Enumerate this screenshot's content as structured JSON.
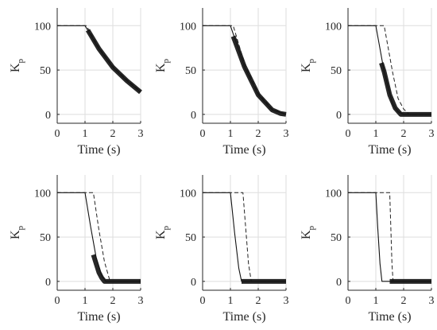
{
  "chart_data": [
    {
      "type": "line",
      "xlabel": "Time (s)",
      "ylabel": "K",
      "ylabel_sub": "p",
      "xlim": [
        0,
        3
      ],
      "ylim": [
        -10,
        120
      ],
      "xticks": [
        0,
        1,
        2,
        3
      ],
      "yticks": [
        0,
        50,
        100
      ],
      "grid": true,
      "series": [
        {
          "style": "solid",
          "x": [
            0,
            1.0,
            1.5,
            2.0,
            2.5,
            3.0
          ],
          "y": [
            100,
            100,
            74,
            53,
            38,
            25
          ]
        },
        {
          "style": "dashed",
          "x": [
            0,
            1.05,
            1.5,
            2.0,
            2.5,
            3.0
          ],
          "y": [
            100,
            100,
            75,
            54,
            39,
            26
          ]
        },
        {
          "style": "thick",
          "x": [
            1.1,
            1.5,
            2.0,
            2.5,
            3.0
          ],
          "y": [
            95,
            74,
            53,
            38,
            25
          ]
        }
      ]
    },
    {
      "type": "line",
      "xlabel": "Time (s)",
      "ylabel": "K",
      "ylabel_sub": "p",
      "xlim": [
        0,
        3
      ],
      "ylim": [
        -10,
        120
      ],
      "xticks": [
        0,
        1,
        2,
        3
      ],
      "yticks": [
        0,
        50,
        100
      ],
      "grid": true,
      "series": [
        {
          "style": "solid",
          "x": [
            0,
            1.0,
            1.5,
            2.0,
            2.5,
            3.0
          ],
          "y": [
            100,
            100,
            54,
            22,
            5,
            0
          ]
        },
        {
          "style": "dashed",
          "x": [
            0,
            1.1,
            1.5,
            2.0,
            2.5,
            3.0
          ],
          "y": [
            100,
            100,
            58,
            24,
            6,
            0
          ]
        },
        {
          "style": "thick",
          "x": [
            1.1,
            1.5,
            2.0,
            2.5,
            2.8,
            3.0
          ],
          "y": [
            88,
            54,
            22,
            5,
            1,
            0
          ]
        }
      ]
    },
    {
      "type": "line",
      "xlabel": "Time (s)",
      "ylabel": "K",
      "ylabel_sub": "p",
      "xlim": [
        0,
        3
      ],
      "ylim": [
        -10,
        120
      ],
      "xticks": [
        0,
        1,
        2,
        3
      ],
      "yticks": [
        0,
        50,
        100
      ],
      "grid": true,
      "series": [
        {
          "style": "solid",
          "x": [
            0,
            1.0,
            1.3,
            1.6,
            1.8,
            2.0,
            3.0
          ],
          "y": [
            100,
            100,
            48,
            12,
            3,
            0,
            0
          ]
        },
        {
          "style": "dashed",
          "x": [
            0,
            1.3,
            1.6,
            1.8,
            2.0,
            2.2,
            3.0
          ],
          "y": [
            100,
            100,
            48,
            18,
            6,
            0,
            0
          ]
        },
        {
          "style": "thick",
          "x": [
            1.2,
            1.3,
            1.5,
            1.7,
            1.9,
            3.0
          ],
          "y": [
            58,
            48,
            22,
            7,
            0,
            0
          ]
        }
      ]
    },
    {
      "type": "line",
      "xlabel": "Time (s)",
      "ylabel": "K",
      "ylabel_sub": "p",
      "xlim": [
        0,
        3
      ],
      "ylim": [
        -10,
        120
      ],
      "xticks": [
        0,
        1,
        2,
        3
      ],
      "yticks": [
        0,
        50,
        100
      ],
      "grid": true,
      "series": [
        {
          "style": "solid",
          "x": [
            0,
            1.0,
            1.2,
            1.4,
            1.6,
            1.75,
            3.0
          ],
          "y": [
            100,
            100,
            62,
            27,
            6,
            0,
            0
          ]
        },
        {
          "style": "dashed",
          "x": [
            0,
            1.3,
            1.5,
            1.7,
            1.9,
            3.0
          ],
          "y": [
            100,
            100,
            58,
            22,
            0,
            0
          ]
        },
        {
          "style": "thick",
          "x": [
            1.3,
            1.4,
            1.5,
            1.6,
            1.7,
            3.0
          ],
          "y": [
            30,
            20,
            10,
            4,
            0,
            0
          ]
        }
      ]
    },
    {
      "type": "line",
      "xlabel": "Time (s)",
      "ylabel": "K",
      "ylabel_sub": "p",
      "xlim": [
        0,
        3
      ],
      "ylim": [
        -10,
        120
      ],
      "xticks": [
        0,
        1,
        2,
        3
      ],
      "yticks": [
        0,
        50,
        100
      ],
      "grid": true,
      "series": [
        {
          "style": "solid",
          "x": [
            0,
            1.0,
            1.15,
            1.3,
            1.4,
            3.0
          ],
          "y": [
            100,
            100,
            55,
            15,
            0,
            0
          ]
        },
        {
          "style": "dashed",
          "x": [
            0,
            1.45,
            1.55,
            1.65,
            1.75,
            3.0
          ],
          "y": [
            100,
            100,
            60,
            20,
            0,
            0
          ]
        },
        {
          "style": "thick",
          "x": [
            1.4,
            3.0
          ],
          "y": [
            0,
            0
          ]
        }
      ]
    },
    {
      "type": "line",
      "xlabel": "Time (s)",
      "ylabel": "K",
      "ylabel_sub": "p",
      "xlim": [
        0,
        3
      ],
      "ylim": [
        -10,
        120
      ],
      "xticks": [
        0,
        1,
        2,
        3
      ],
      "yticks": [
        0,
        50,
        100
      ],
      "grid": true,
      "series": [
        {
          "style": "solid",
          "x": [
            0,
            1.0,
            1.07,
            1.15,
            1.22,
            3.0
          ],
          "y": [
            100,
            100,
            60,
            20,
            0,
            0
          ]
        },
        {
          "style": "dashed",
          "x": [
            0,
            1.5,
            1.54,
            1.58,
            1.62,
            3.0
          ],
          "y": [
            100,
            100,
            60,
            20,
            0,
            0
          ]
        },
        {
          "style": "thick",
          "x": [
            1.5,
            3.0
          ],
          "y": [
            0,
            0
          ]
        }
      ]
    }
  ]
}
